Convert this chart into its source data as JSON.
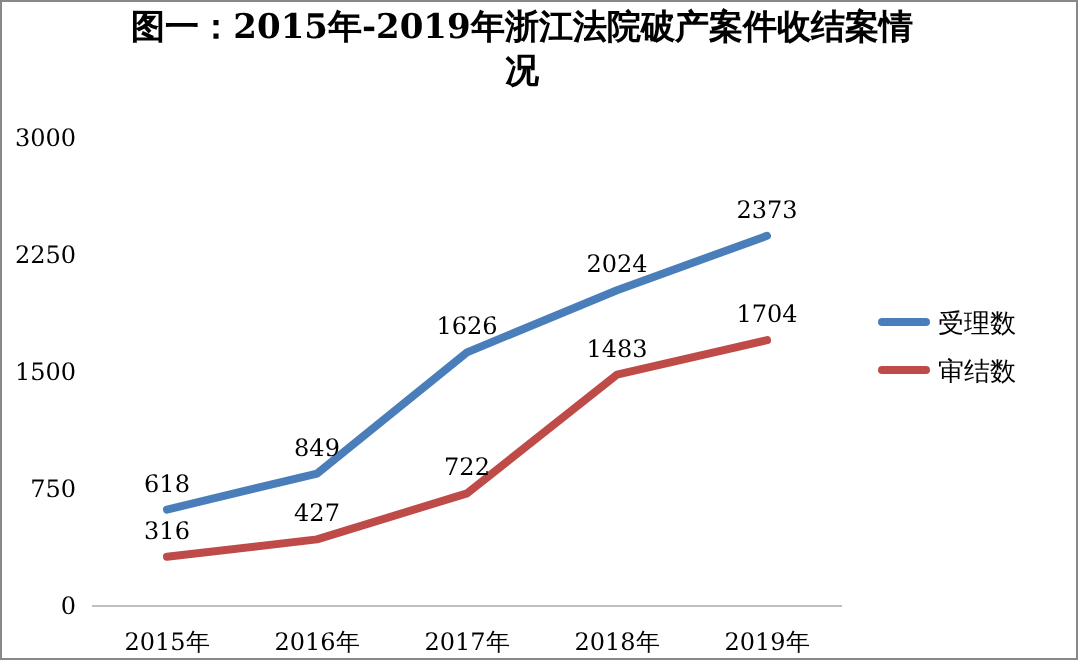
{
  "chart_data": {
    "type": "line",
    "title": "图一：2015年-2019年浙江法院破产案件收结案情况",
    "categories": [
      "2015年",
      "2016年",
      "2017年",
      "2018年",
      "2019年"
    ],
    "series": [
      {
        "name": "受理数",
        "color": "#4a7ebb",
        "values": [
          618,
          849,
          1626,
          2024,
          2373
        ]
      },
      {
        "name": "审结数",
        "color": "#be4b48",
        "values": [
          316,
          427,
          722,
          1483,
          1704
        ]
      }
    ],
    "ylim": [
      0,
      3000
    ],
    "yticks": [
      0,
      750,
      1500,
      2250,
      3000
    ],
    "grid": false,
    "legend": "right",
    "data_labels": true,
    "marker": "none",
    "line_style": "solid"
  }
}
